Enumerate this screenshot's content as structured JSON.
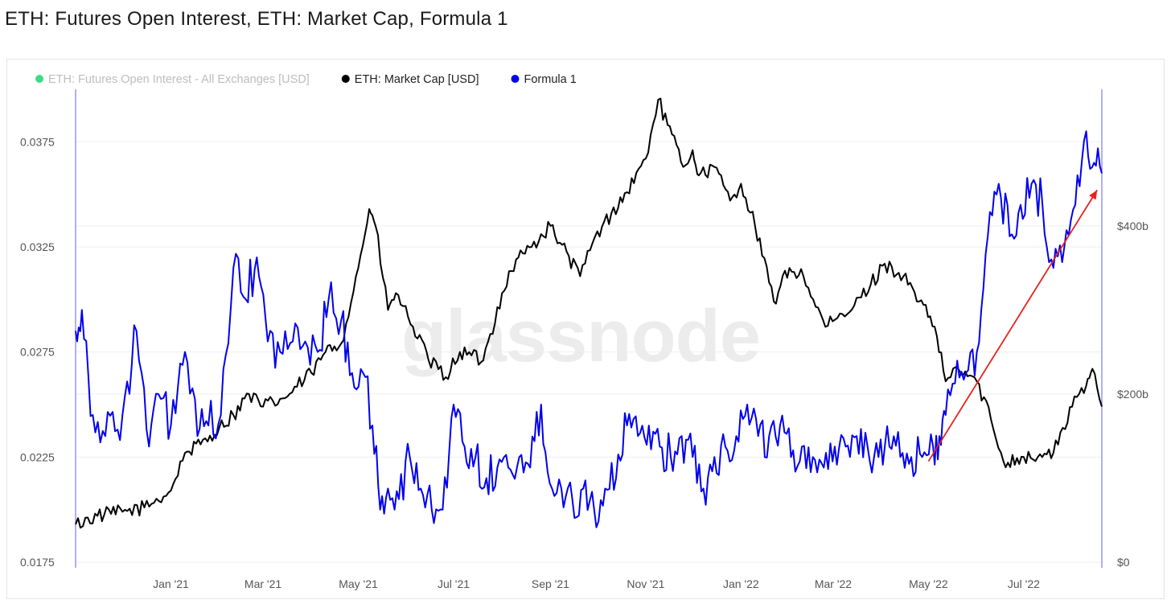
{
  "page": {
    "title": "ETH: Futures Open Interest, ETH: Market Cap, Formula 1",
    "watermark": "glassnode"
  },
  "legend": [
    {
      "label": "ETH: Futures Open Interest - All Exchanges [USD]",
      "color": "#3ddc84",
      "faded": true
    },
    {
      "label": "ETH: Market Cap [USD]",
      "color": "#000000",
      "faded": false
    },
    {
      "label": "Formula 1",
      "color": "#0000ee",
      "faded": false
    }
  ],
  "chart_data": {
    "type": "line",
    "x_ticks": [
      "Jan '21",
      "Mar '21",
      "May '21",
      "Jul '21",
      "Sep '21",
      "Nov '21",
      "Jan '22",
      "Mar '22",
      "May '22",
      "Jul '22"
    ],
    "x_tick_dates": [
      "2021-01-01",
      "2021-03-01",
      "2021-05-01",
      "2021-07-01",
      "2021-09-01",
      "2021-11-01",
      "2022-01-01",
      "2022-03-01",
      "2022-05-01",
      "2022-07-01"
    ],
    "x_range": [
      "2020-11-01",
      "2022-08-20"
    ],
    "left_axis": {
      "ticks": [
        "0.0175",
        "0.0225",
        "0.0275",
        "0.0325",
        "0.0375"
      ],
      "values": [
        0.0175,
        0.0225,
        0.0275,
        0.0325,
        0.0375
      ],
      "range": [
        0.0175,
        0.0395
      ]
    },
    "right_axis": {
      "ticks": [
        "$0",
        "$200b",
        "$400b"
      ],
      "values": [
        0,
        200,
        400
      ],
      "range": [
        0,
        550
      ]
    },
    "series": [
      {
        "name": "ETH: Market Cap [USD]",
        "axis": "right",
        "color": "#000000",
        "x": [
          "2020-11-01",
          "2020-11-15",
          "2020-12-01",
          "2020-12-15",
          "2021-01-01",
          "2021-01-10",
          "2021-01-20",
          "2021-02-01",
          "2021-02-10",
          "2021-02-20",
          "2021-03-01",
          "2021-03-15",
          "2021-04-01",
          "2021-04-10",
          "2021-04-20",
          "2021-05-01",
          "2021-05-08",
          "2021-05-12",
          "2021-05-20",
          "2021-05-25",
          "2021-06-05",
          "2021-06-15",
          "2021-06-26",
          "2021-07-05",
          "2021-07-20",
          "2021-08-01",
          "2021-08-10",
          "2021-08-20",
          "2021-09-01",
          "2021-09-07",
          "2021-09-20",
          "2021-09-28",
          "2021-10-10",
          "2021-10-20",
          "2021-11-01",
          "2021-11-09",
          "2021-11-15",
          "2021-11-25",
          "2021-12-01",
          "2021-12-05",
          "2021-12-15",
          "2021-12-25",
          "2022-01-01",
          "2022-01-10",
          "2022-01-22",
          "2022-02-01",
          "2022-02-10",
          "2022-02-24",
          "2022-03-10",
          "2022-03-25",
          "2022-04-03",
          "2022-04-15",
          "2022-04-25",
          "2022-05-05",
          "2022-05-12",
          "2022-05-20",
          "2022-06-01",
          "2022-06-10",
          "2022-06-18",
          "2022-07-01",
          "2022-07-10",
          "2022-07-20",
          "2022-08-01",
          "2022-08-10",
          "2022-08-14",
          "2022-08-20"
        ],
        "values": [
          45,
          55,
          60,
          65,
          85,
          130,
          140,
          160,
          175,
          200,
          185,
          195,
          225,
          250,
          260,
          350,
          420,
          400,
          300,
          320,
          280,
          240,
          220,
          250,
          240,
          320,
          360,
          375,
          400,
          380,
          340,
          380,
          415,
          440,
          480,
          550,
          520,
          470,
          490,
          460,
          470,
          430,
          450,
          400,
          310,
          350,
          340,
          280,
          295,
          330,
          355,
          340,
          310,
          280,
          215,
          230,
          215,
          170,
          120,
          125,
          125,
          130,
          185,
          210,
          230,
          185
        ]
      },
      {
        "name": "Formula 1",
        "axis": "left",
        "color": "#0000ee",
        "x": [
          "2020-11-01",
          "2020-11-05",
          "2020-11-12",
          "2020-11-20",
          "2020-12-01",
          "2020-12-10",
          "2020-12-18",
          "2020-12-24",
          "2021-01-01",
          "2021-01-10",
          "2021-01-18",
          "2021-01-25",
          "2021-02-02",
          "2021-02-10",
          "2021-02-18",
          "2021-02-25",
          "2021-03-04",
          "2021-03-12",
          "2021-03-20",
          "2021-03-28",
          "2021-04-05",
          "2021-04-12",
          "2021-04-20",
          "2021-04-27",
          "2021-05-04",
          "2021-05-10",
          "2021-05-15",
          "2021-05-20",
          "2021-05-27",
          "2021-06-03",
          "2021-06-10",
          "2021-06-17",
          "2021-06-24",
          "2021-07-01",
          "2021-07-08",
          "2021-07-15",
          "2021-07-22",
          "2021-07-29",
          "2021-08-05",
          "2021-08-12",
          "2021-08-19",
          "2021-08-26",
          "2021-09-02",
          "2021-09-08",
          "2021-09-15",
          "2021-09-22",
          "2021-09-29",
          "2021-10-06",
          "2021-10-13",
          "2021-10-20",
          "2021-10-27",
          "2021-11-03",
          "2021-11-10",
          "2021-11-17",
          "2021-11-24",
          "2021-12-01",
          "2021-12-08",
          "2021-12-15",
          "2021-12-22",
          "2021-12-29",
          "2022-01-05",
          "2022-01-12",
          "2022-01-19",
          "2022-01-26",
          "2022-02-02",
          "2022-02-09",
          "2022-02-16",
          "2022-02-23",
          "2022-03-02",
          "2022-03-09",
          "2022-03-16",
          "2022-03-23",
          "2022-03-30",
          "2022-04-06",
          "2022-04-13",
          "2022-04-20",
          "2022-04-27",
          "2022-05-04",
          "2022-05-08",
          "2022-05-12",
          "2022-05-18",
          "2022-05-25",
          "2022-06-01",
          "2022-06-08",
          "2022-06-15",
          "2022-06-22",
          "2022-06-29",
          "2022-07-06",
          "2022-07-13",
          "2022-07-20",
          "2022-07-27",
          "2022-08-03",
          "2022-08-10",
          "2022-08-15",
          "2022-08-20"
        ],
        "values": [
          0.0285,
          0.0295,
          0.0245,
          0.0235,
          0.0245,
          0.0285,
          0.023,
          0.0255,
          0.024,
          0.0275,
          0.0235,
          0.024,
          0.0245,
          0.0315,
          0.03,
          0.032,
          0.028,
          0.0275,
          0.028,
          0.028,
          0.0275,
          0.03,
          0.029,
          0.0265,
          0.0265,
          0.024,
          0.02,
          0.021,
          0.0205,
          0.0225,
          0.021,
          0.02,
          0.02,
          0.025,
          0.023,
          0.0225,
          0.0215,
          0.022,
          0.022,
          0.0225,
          0.022,
          0.025,
          0.021,
          0.021,
          0.0205,
          0.021,
          0.02,
          0.021,
          0.0215,
          0.024,
          0.0235,
          0.024,
          0.023,
          0.0225,
          0.0235,
          0.0225,
          0.021,
          0.0225,
          0.023,
          0.0235,
          0.025,
          0.0235,
          0.0235,
          0.024,
          0.0225,
          0.023,
          0.0225,
          0.022,
          0.023,
          0.023,
          0.0235,
          0.023,
          0.0225,
          0.023,
          0.0225,
          0.0225,
          0.0225,
          0.023,
          0.0235,
          0.0245,
          0.026,
          0.0265,
          0.0275,
          0.033,
          0.0355,
          0.033,
          0.0345,
          0.0355,
          0.0345,
          0.0315,
          0.0325,
          0.0345,
          0.038,
          0.0365,
          0.036
        ]
      }
    ],
    "annotation_arrow": {
      "color": "#e8221c",
      "from": {
        "x": "2022-05-01",
        "y": 0.0223
      },
      "to": {
        "x": "2022-08-17",
        "y": 0.0352
      }
    }
  }
}
